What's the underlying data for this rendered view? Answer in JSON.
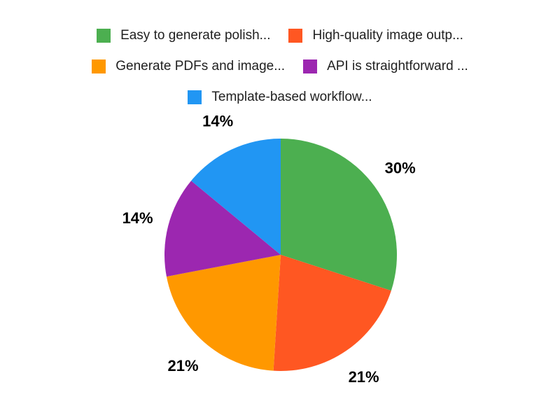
{
  "colors": {
    "background": "#ffffff",
    "legend_text": "#212121",
    "percent_text": "#000000"
  },
  "chart_data": {
    "type": "pie",
    "legend_position": "top",
    "start_angle_deg": 0,
    "direction": "clockwise",
    "slices": [
      {
        "label": "Easy to generate polish...",
        "value": 30,
        "pct_label": "30%",
        "color": "#4caf50"
      },
      {
        "label": "High-quality image outp...",
        "value": 21,
        "pct_label": "21%",
        "color": "#ff5722"
      },
      {
        "label": "Generate PDFs and image...",
        "value": 21,
        "pct_label": "21%",
        "color": "#ff9800"
      },
      {
        "label": "API is straightforward ...",
        "value": 14,
        "pct_label": "14%",
        "color": "#9c27b0"
      },
      {
        "label": "Template-based workflow...",
        "value": 14,
        "pct_label": "14%",
        "color": "#2196f3"
      }
    ]
  }
}
